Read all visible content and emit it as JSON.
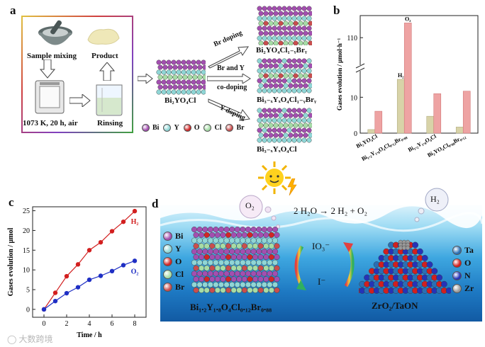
{
  "panel_a": {
    "label": "a",
    "steps": {
      "mixing": "Sample mixing",
      "product": "Product",
      "furnace": "1073 K, 20 h, air",
      "rinsing": "Rinsing"
    },
    "parent": "Bi₂YO₄Cl",
    "routes": [
      {
        "arrow": "Br doping",
        "arrow2": "",
        "result": "Bi₂YO₄Cl₁₋ᵧBrᵧ"
      },
      {
        "arrow": "Br and Y",
        "arrow2": "co-doping",
        "result": "Bi₃₋ₓYₓO₄Cl₁₋ᵧBrᵧ"
      },
      {
        "arrow": "Y doping",
        "arrow2": "",
        "result": "Bi₃₋ₓYₓO₄Cl"
      }
    ],
    "legend": [
      {
        "name": "Bi",
        "color": "#a34fb0"
      },
      {
        "name": "Y",
        "color": "#8fd6d6"
      },
      {
        "name": "O",
        "color": "#d12727"
      },
      {
        "name": "Cl",
        "color": "#a6dca6"
      },
      {
        "name": "Br",
        "color": "#c94e4e"
      }
    ]
  },
  "panel_b": {
    "label": "b",
    "chart_data": {
      "type": "bar",
      "ylabel": "Gases evolution / μmol·h⁻¹",
      "yticks": [
        "0",
        "10",
        "110"
      ],
      "categories": [
        "Bi₂YO₄Cl",
        "Bi₁.₂Y₁.₈O₄Cl₀.₁₂Br₀.₈₈",
        "Bi₁.₂Y₁.₈O₄Cl",
        "Bi₂YO₄Cl₀.₈₈Br₀.₁₂"
      ],
      "series": [
        {
          "name": "H₂",
          "values": [
            1.0,
            15.0,
            4.7,
            1.7
          ],
          "color": "#d8d3a8"
        },
        {
          "name": "O₂",
          "values": [
            6.1,
            116.0,
            11.0,
            11.7
          ],
          "color": "#eea3a3"
        }
      ],
      "bar_labels": {
        "h2": "H₂",
        "o2": "O₂"
      }
    }
  },
  "panel_c": {
    "label": "c",
    "chart_data": {
      "type": "line",
      "xlabel": "Time / h",
      "ylabel": "Gases evolution / μmol",
      "xlim": [
        -1,
        9
      ],
      "ylim": [
        -2,
        26
      ],
      "xticks": [
        0,
        2,
        4,
        6,
        8
      ],
      "yticks": [
        0,
        5,
        10,
        15,
        20,
        25
      ],
      "series": [
        {
          "name": "H₂",
          "color": "#d21f1f",
          "x": [
            0,
            1,
            2,
            3,
            4,
            5,
            6,
            7,
            8
          ],
          "y": [
            0,
            4.2,
            8.4,
            11.4,
            15.0,
            17.0,
            19.8,
            22.2,
            24.9
          ]
        },
        {
          "name": "O₂",
          "color": "#1f2fc4",
          "x": [
            0,
            1,
            2,
            3,
            4,
            5,
            6,
            7,
            8
          ],
          "y": [
            0,
            2.1,
            4.1,
            5.6,
            7.5,
            8.5,
            9.7,
            11.2,
            12.3
          ]
        }
      ]
    }
  },
  "panel_d": {
    "label": "d",
    "reaction": "2 H₂O → 2 H₂ + O₂",
    "o2": "O₂",
    "h2": "H₂",
    "io3": "IO₃⁻",
    "iminus": "I⁻",
    "left_legend": [
      {
        "name": "Bi",
        "color": "#a34fb0"
      },
      {
        "name": "Y",
        "color": "#8fd6d6"
      },
      {
        "name": "O",
        "color": "#d12727"
      },
      {
        "name": "Cl",
        "color": "#a6dca6"
      },
      {
        "name": "Br",
        "color": "#c94e4e"
      }
    ],
    "right_legend": [
      {
        "name": "Ta",
        "color": "#2a6fb5"
      },
      {
        "name": "O",
        "color": "#d11f1f"
      },
      {
        "name": "N",
        "color": "#2533b8"
      },
      {
        "name": "Zr",
        "color": "#9a9a9a"
      }
    ],
    "left_caption": "Bi₁.₂Y₁.₈O₄Cl₀.₁₂Br₀.₈₈",
    "right_caption": "ZrO₂/TaON"
  },
  "watermark": "大数跨境"
}
